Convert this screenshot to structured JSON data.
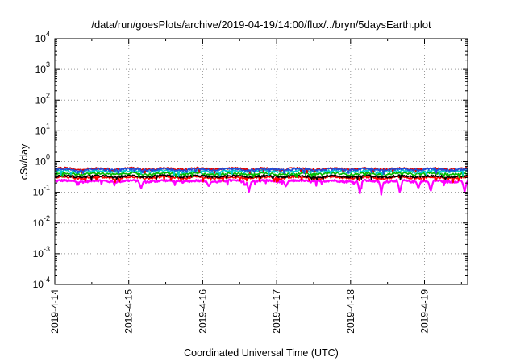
{
  "chart_data": {
    "type": "line",
    "title": "/data/run/goesPlots/archive/2019-04-19/14:00/flux/../bryn/5daysEarth.plot",
    "xlabel": "Coordinated Universal Time (UTC)",
    "ylabel": "cSv/day",
    "yscale": "log",
    "ylim": [
      0.0001,
      10000
    ],
    "y_ticks": [
      {
        "base": "10",
        "exp": "-4",
        "value": 0.0001
      },
      {
        "base": "10",
        "exp": "-3",
        "value": 0.001
      },
      {
        "base": "10",
        "exp": "-2",
        "value": 0.01
      },
      {
        "base": "10",
        "exp": "-1",
        "value": 0.1
      },
      {
        "base": "10",
        "exp": "0",
        "value": 1
      },
      {
        "base": "10",
        "exp": "1",
        "value": 10
      },
      {
        "base": "10",
        "exp": "2",
        "value": 100
      },
      {
        "base": "10",
        "exp": "3",
        "value": 1000
      },
      {
        "base": "10",
        "exp": "4",
        "value": 10000
      }
    ],
    "x_ticks": [
      "2019-4-14",
      "2019-4-15",
      "2019-4-16",
      "2019-4-17",
      "2019-4-18",
      "2019-4-19"
    ],
    "xlim": [
      "2019-04-14T00:00",
      "2019-04-19T14:00"
    ],
    "grid": true,
    "legend": "none",
    "series": [
      {
        "color": "#ff00ff",
        "level": 0.23,
        "dips": [
          [
            "2019-04-15T04:00",
            0.13
          ],
          [
            "2019-04-16T02:00",
            0.15
          ],
          [
            "2019-04-16T15:00",
            0.1
          ],
          [
            "2019-04-17T03:00",
            0.15
          ],
          [
            "2019-04-18T03:00",
            0.09
          ],
          [
            "2019-04-18T10:00",
            0.1
          ],
          [
            "2019-04-18T16:00",
            0.09
          ],
          [
            "2019-04-18T22:00",
            0.13
          ],
          [
            "2019-04-19T02:00",
            0.1
          ],
          [
            "2019-04-19T13:00",
            0.1
          ]
        ]
      },
      {
        "color": "#ff0000",
        "level": 0.3
      },
      {
        "color": "#000000",
        "level": 0.33
      },
      {
        "color": "#00bb00",
        "level": 0.4
      },
      {
        "color": "#00cccc",
        "level": 0.48
      },
      {
        "color": "#dd0000",
        "level": 0.58
      },
      {
        "color": "#1f4fd8",
        "level": 0.55
      }
    ]
  }
}
